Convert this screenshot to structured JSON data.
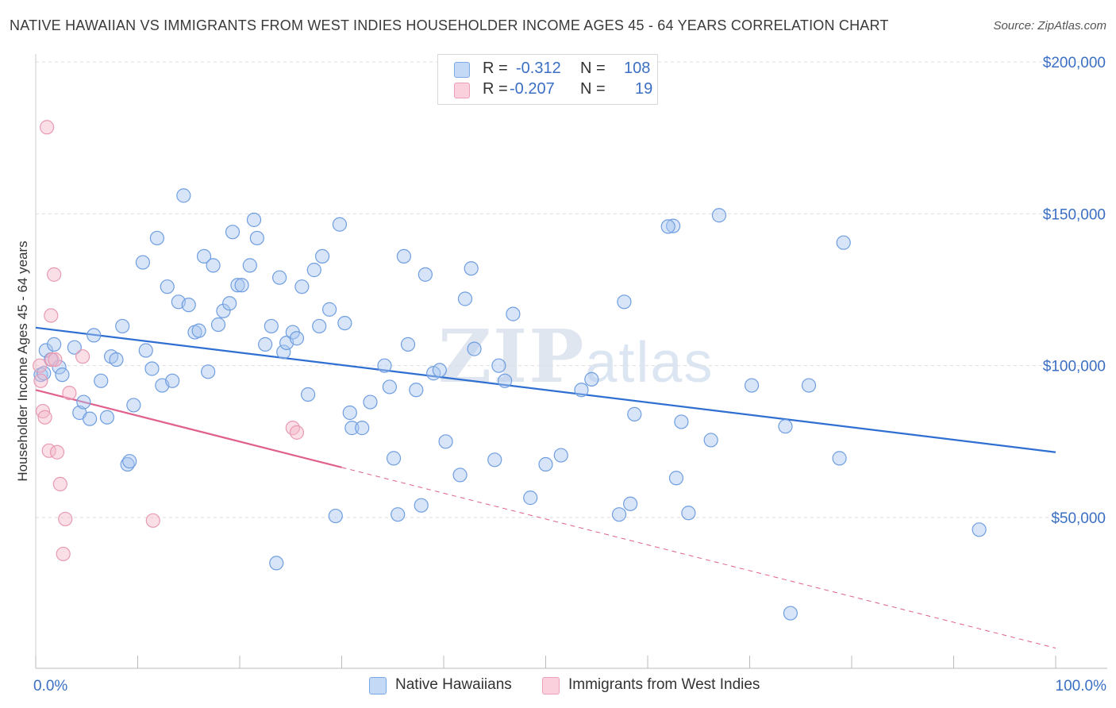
{
  "title": "NATIVE HAWAIIAN VS IMMIGRANTS FROM WEST INDIES HOUSEHOLDER INCOME AGES 45 - 64 YEARS CORRELATION CHART",
  "source": "Source: ZipAtlas.com",
  "watermark": {
    "zip": "ZIP",
    "atlas": "atlas"
  },
  "legend": {
    "rows": [
      {
        "r_label": "R =",
        "r_value": "-0.312",
        "n_label": "N =",
        "n_value": "108",
        "color": "#a8c6f0"
      },
      {
        "r_label": "R =",
        "r_value": "-0.207",
        "n_label": "N =",
        "n_value": "19",
        "color": "#f5b8ca"
      }
    ]
  },
  "bottom_legend": [
    {
      "label": "Native Hawaiians",
      "color": "#a8c6f0"
    },
    {
      "label": "Immigrants from West Indies",
      "color": "#f5b8ca"
    }
  ],
  "colors": {
    "blue_fill": "#a8c6f0",
    "blue_stroke": "#6f9ee0",
    "blue_line": "#2e6fd1",
    "pink_fill": "#f5b8ca",
    "pink_stroke": "#e89ab3",
    "pink_line": "#e0608e",
    "grid": "#dedede",
    "axis_text": "#3b6fc4"
  },
  "chart_data": {
    "type": "scatter",
    "title": "NATIVE HAWAIIAN VS IMMIGRANTS FROM WEST INDIES HOUSEHOLDER INCOME AGES 45 - 64 YEARS CORRELATION CHART",
    "xlabel": "",
    "ylabel": "Householder Income Ages 45 - 64 years",
    "xlim": [
      0,
      100
    ],
    "ylim": [
      0,
      210000
    ],
    "x_tick_labels": [
      "0.0%",
      "100.0%"
    ],
    "y_ticks": [
      50000,
      100000,
      150000,
      200000
    ],
    "y_tick_labels": [
      "$50,000",
      "$100,000",
      "$150,000",
      "$200,000"
    ],
    "grid": true,
    "series": [
      {
        "name": "Native Hawaiians",
        "trend": {
          "x": [
            0,
            100
          ],
          "y": [
            112500,
            71500
          ],
          "style": "solid"
        },
        "points": [
          [
            0.5,
            97000
          ],
          [
            1,
            105000
          ],
          [
            1.5,
            102000
          ],
          [
            1.8,
            107000
          ],
          [
            2.3,
            99500
          ],
          [
            2.6,
            97000
          ],
          [
            3.8,
            106000
          ],
          [
            4.3,
            84500
          ],
          [
            4.7,
            88000
          ],
          [
            5.3,
            82500
          ],
          [
            5.7,
            110000
          ],
          [
            6.4,
            95000
          ],
          [
            7,
            83000
          ],
          [
            7.4,
            103000
          ],
          [
            7.9,
            102000
          ],
          [
            8.5,
            113000
          ],
          [
            9,
            67500
          ],
          [
            9.2,
            68500
          ],
          [
            9.6,
            87000
          ],
          [
            10.5,
            134000
          ],
          [
            10.8,
            105000
          ],
          [
            11.4,
            99000
          ],
          [
            11.9,
            142000
          ],
          [
            12.4,
            93500
          ],
          [
            12.9,
            126000
          ],
          [
            13.4,
            95000
          ],
          [
            14,
            121000
          ],
          [
            14.5,
            156000
          ],
          [
            15,
            120000
          ],
          [
            15.6,
            111000
          ],
          [
            16,
            111500
          ],
          [
            16.5,
            136000
          ],
          [
            16.9,
            98000
          ],
          [
            17.4,
            133000
          ],
          [
            17.9,
            113500
          ],
          [
            18.4,
            118000
          ],
          [
            19,
            120500
          ],
          [
            19.3,
            144000
          ],
          [
            19.8,
            126500
          ],
          [
            20.2,
            126500
          ],
          [
            21,
            133000
          ],
          [
            21.4,
            148000
          ],
          [
            21.7,
            142000
          ],
          [
            22.5,
            107000
          ],
          [
            23.1,
            113000
          ],
          [
            23.6,
            35000
          ],
          [
            23.9,
            129000
          ],
          [
            24.3,
            104500
          ],
          [
            24.6,
            107500
          ],
          [
            25.2,
            111000
          ],
          [
            25.6,
            109000
          ],
          [
            26.1,
            126000
          ],
          [
            26.7,
            90500
          ],
          [
            27.3,
            131500
          ],
          [
            27.8,
            113000
          ],
          [
            28.1,
            136000
          ],
          [
            28.8,
            118500
          ],
          [
            29.4,
            50500
          ],
          [
            29.8,
            146500
          ],
          [
            30.3,
            114000
          ],
          [
            30.8,
            84500
          ],
          [
            31,
            79500
          ],
          [
            32,
            79500
          ],
          [
            32.8,
            88000
          ],
          [
            34.2,
            100000
          ],
          [
            34.7,
            93000
          ],
          [
            35.1,
            69500
          ],
          [
            35.5,
            51000
          ],
          [
            36.1,
            136000
          ],
          [
            36.5,
            107000
          ],
          [
            37.3,
            92000
          ],
          [
            37.8,
            54000
          ],
          [
            38.2,
            130000
          ],
          [
            39,
            97500
          ],
          [
            39.6,
            98500
          ],
          [
            40.2,
            75000
          ],
          [
            41.6,
            64000
          ],
          [
            42.1,
            122000
          ],
          [
            42.7,
            132000
          ],
          [
            43,
            105500
          ],
          [
            45,
            69000
          ],
          [
            45.4,
            100000
          ],
          [
            46,
            95000
          ],
          [
            46.8,
            117000
          ],
          [
            48.5,
            56500
          ],
          [
            50,
            67500
          ],
          [
            51.5,
            70500
          ],
          [
            53.5,
            92000
          ],
          [
            54.5,
            95500
          ],
          [
            57.2,
            51000
          ],
          [
            57.7,
            121000
          ],
          [
            58.3,
            54500
          ],
          [
            58.7,
            84000
          ],
          [
            62.5,
            146000
          ],
          [
            62.8,
            63000
          ],
          [
            63.3,
            81500
          ],
          [
            64,
            51500
          ],
          [
            66.2,
            75500
          ],
          [
            67,
            149500
          ],
          [
            70.2,
            93500
          ],
          [
            74,
            18500
          ],
          [
            73.5,
            80000
          ],
          [
            75.8,
            93500
          ],
          [
            78.8,
            69500
          ],
          [
            79.2,
            140500
          ],
          [
            92.5,
            46000
          ],
          [
            0.8,
            97500
          ],
          [
            62,
            145800
          ]
        ]
      },
      {
        "name": "Immigrants from West Indies",
        "trend": {
          "x": [
            0,
            30
          ],
          "y": [
            92000,
            66500
          ],
          "style": "solid",
          "extended_to": [
            100,
            7000
          ]
        },
        "points": [
          [
            0.4,
            100000
          ],
          [
            0.7,
            85000
          ],
          [
            0.9,
            83000
          ],
          [
            1.1,
            178500
          ],
          [
            1.3,
            72000
          ],
          [
            1.5,
            116500
          ],
          [
            1.6,
            102000
          ],
          [
            1.8,
            130000
          ],
          [
            2.1,
            71500
          ],
          [
            2.4,
            61000
          ],
          [
            2.7,
            38000
          ],
          [
            2.9,
            49500
          ],
          [
            3.3,
            91000
          ],
          [
            4.6,
            103000
          ],
          [
            11.5,
            49000
          ],
          [
            25.2,
            79500
          ],
          [
            25.6,
            78000
          ],
          [
            0.5,
            95000
          ],
          [
            1.9,
            102000
          ]
        ]
      }
    ]
  }
}
